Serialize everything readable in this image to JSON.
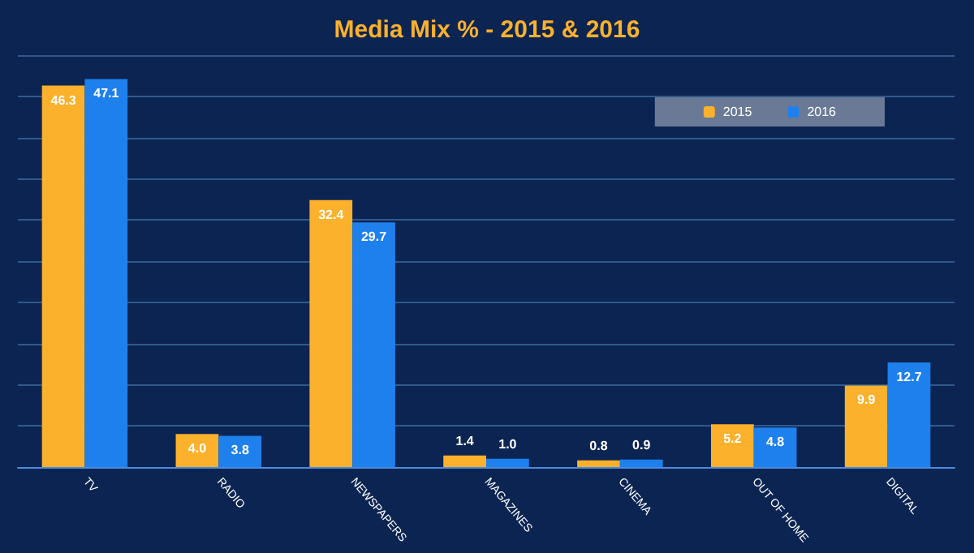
{
  "chart_data": {
    "type": "bar",
    "title": "Media Mix % - 2015 & 2016",
    "categories": [
      "TV",
      "RADIO",
      "NEWSPAPERS",
      "MAGAZINES",
      "CINEMA",
      "OUT OF HOME",
      "DIGITAL"
    ],
    "series": [
      {
        "name": "2015",
        "color": "#fbb12b",
        "values": [
          46.3,
          4.0,
          32.4,
          1.4,
          0.8,
          5.2,
          9.9
        ],
        "value_labels": [
          "46.3",
          "4.0",
          "32.4",
          "1.4",
          "0.8",
          "5.2",
          "9.9"
        ]
      },
      {
        "name": "2016",
        "color": "#1e80ec",
        "values": [
          47.1,
          3.8,
          29.7,
          1.0,
          0.9,
          4.8,
          12.7
        ],
        "value_labels": [
          "47.1",
          "3.8",
          "29.7",
          "1.0",
          "0.9",
          "4.8",
          "12.7"
        ]
      }
    ],
    "ylim": [
      0,
      50
    ],
    "yticks": [
      {
        "value": 0,
        "label": null
      },
      {
        "value": 5,
        "label": null
      },
      {
        "value": 10,
        "label": null
      },
      {
        "value": 15,
        "label": null
      },
      {
        "value": 20,
        "label": null
      },
      {
        "value": 25,
        "label": null
      },
      {
        "value": 30,
        "label": null
      },
      {
        "value": 35,
        "label": null
      },
      {
        "value": 40,
        "label": null
      },
      {
        "value": 45,
        "label": null
      },
      {
        "value": 50,
        "label": null
      }
    ],
    "grid": "y",
    "legend": "top right"
  }
}
